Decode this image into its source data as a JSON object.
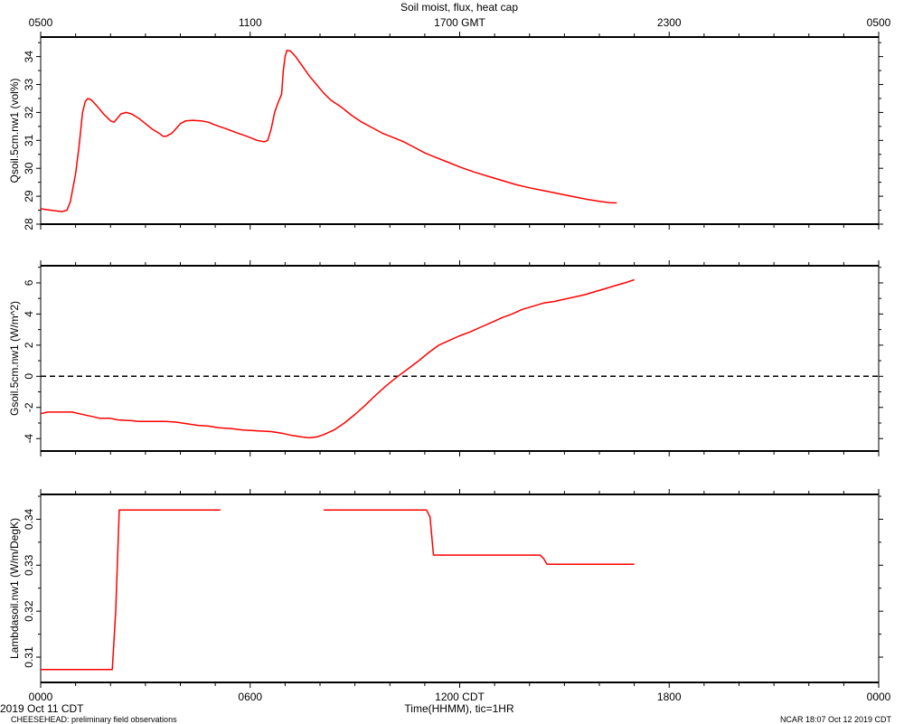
{
  "title": "Soil moist, flux, heat cap",
  "top_axis": {
    "label": "GMT",
    "ticks": [
      "0500",
      "1100",
      "1700 GMT",
      "2300",
      "0500"
    ]
  },
  "bottom_axis": {
    "label": "Time(HHMM), tic=1HR",
    "ticks": [
      "0000",
      "0600",
      "1200 CDT",
      "1800",
      "0000"
    ]
  },
  "footer": {
    "date": "2019 Oct 11 CDT",
    "project": "CHEESEHEAD: preliminary field observations",
    "stamp": "NCAR 18:07 Oct 12 2019 CDT"
  },
  "chart_data": [
    {
      "type": "line",
      "ylabel": "Qsoil.5cm.nw1 (vol%)",
      "xlabel": "Time(HHMM), tic=1HR",
      "xlim": [
        0,
        24
      ],
      "ylim": [
        28,
        34.7
      ],
      "yticks": [
        28,
        29,
        30,
        31,
        32,
        33,
        34
      ],
      "color": "#ff0000",
      "series": [
        {
          "points": [
            [
              0.0,
              28.55
            ],
            [
              0.3,
              28.5
            ],
            [
              0.6,
              28.45
            ],
            [
              0.75,
              28.5
            ],
            [
              0.85,
              28.8
            ],
            [
              1.0,
              29.8
            ],
            [
              1.1,
              30.8
            ],
            [
              1.2,
              32.0
            ],
            [
              1.28,
              32.4
            ],
            [
              1.35,
              32.5
            ],
            [
              1.45,
              32.45
            ],
            [
              1.6,
              32.25
            ],
            [
              1.8,
              31.95
            ],
            [
              2.0,
              31.7
            ],
            [
              2.1,
              31.65
            ],
            [
              2.2,
              31.8
            ],
            [
              2.3,
              31.95
            ],
            [
              2.45,
              32.0
            ],
            [
              2.6,
              31.95
            ],
            [
              2.8,
              31.8
            ],
            [
              3.0,
              31.6
            ],
            [
              3.2,
              31.4
            ],
            [
              3.4,
              31.25
            ],
            [
              3.5,
              31.15
            ],
            [
              3.6,
              31.15
            ],
            [
              3.75,
              31.25
            ],
            [
              3.9,
              31.45
            ],
            [
              4.0,
              31.6
            ],
            [
              4.15,
              31.7
            ],
            [
              4.35,
              31.72
            ],
            [
              4.6,
              31.7
            ],
            [
              4.8,
              31.65
            ],
            [
              5.0,
              31.55
            ],
            [
              5.3,
              31.42
            ],
            [
              5.6,
              31.28
            ],
            [
              5.9,
              31.15
            ],
            [
              6.2,
              31.0
            ],
            [
              6.4,
              30.95
            ],
            [
              6.5,
              31.0
            ],
            [
              6.6,
              31.4
            ],
            [
              6.7,
              32.0
            ],
            [
              6.8,
              32.35
            ],
            [
              6.9,
              32.65
            ],
            [
              6.95,
              33.5
            ],
            [
              7.0,
              34.0
            ],
            [
              7.05,
              34.22
            ],
            [
              7.15,
              34.2
            ],
            [
              7.3,
              34.0
            ],
            [
              7.5,
              33.65
            ],
            [
              7.7,
              33.3
            ],
            [
              7.9,
              33.0
            ],
            [
              8.1,
              32.7
            ],
            [
              8.3,
              32.45
            ],
            [
              8.6,
              32.2
            ],
            [
              8.9,
              31.9
            ],
            [
              9.2,
              31.65
            ],
            [
              9.5,
              31.45
            ],
            [
              9.8,
              31.25
            ],
            [
              10.1,
              31.1
            ],
            [
              10.4,
              30.95
            ],
            [
              10.7,
              30.75
            ],
            [
              11.0,
              30.55
            ],
            [
              11.3,
              30.4
            ],
            [
              11.6,
              30.25
            ],
            [
              12.0,
              30.05
            ],
            [
              12.4,
              29.87
            ],
            [
              12.8,
              29.72
            ],
            [
              13.2,
              29.57
            ],
            [
              13.6,
              29.42
            ],
            [
              14.0,
              29.3
            ],
            [
              14.4,
              29.2
            ],
            [
              14.8,
              29.1
            ],
            [
              15.2,
              29.0
            ],
            [
              15.6,
              28.9
            ],
            [
              16.0,
              28.82
            ],
            [
              16.3,
              28.77
            ],
            [
              16.5,
              28.76
            ]
          ]
        }
      ]
    },
    {
      "type": "line",
      "ylabel": "Gsoil.5cm.nw1 (W/m^2)",
      "xlabel": "Time(HHMM), tic=1HR",
      "xlim": [
        0,
        24
      ],
      "ylim": [
        -4.8,
        7.1
      ],
      "yticks": [
        -4,
        -2,
        0,
        2,
        4,
        6
      ],
      "zero_line": 0,
      "color": "#ff0000",
      "series": [
        {
          "points": [
            [
              0.0,
              -2.4
            ],
            [
              0.2,
              -2.3
            ],
            [
              0.5,
              -2.3
            ],
            [
              0.9,
              -2.3
            ],
            [
              1.1,
              -2.4
            ],
            [
              1.4,
              -2.55
            ],
            [
              1.7,
              -2.7
            ],
            [
              2.0,
              -2.7
            ],
            [
              2.2,
              -2.8
            ],
            [
              2.6,
              -2.85
            ],
            [
              2.8,
              -2.9
            ],
            [
              3.2,
              -2.9
            ],
            [
              3.6,
              -2.9
            ],
            [
              3.9,
              -2.95
            ],
            [
              4.2,
              -3.05
            ],
            [
              4.5,
              -3.15
            ],
            [
              4.8,
              -3.2
            ],
            [
              5.1,
              -3.3
            ],
            [
              5.4,
              -3.35
            ],
            [
              5.8,
              -3.45
            ],
            [
              6.2,
              -3.5
            ],
            [
              6.6,
              -3.55
            ],
            [
              6.9,
              -3.65
            ],
            [
              7.2,
              -3.8
            ],
            [
              7.5,
              -3.9
            ],
            [
              7.7,
              -3.95
            ],
            [
              7.9,
              -3.9
            ],
            [
              8.1,
              -3.75
            ],
            [
              8.4,
              -3.45
            ],
            [
              8.7,
              -3.0
            ],
            [
              9.0,
              -2.45
            ],
            [
              9.3,
              -1.85
            ],
            [
              9.6,
              -1.2
            ],
            [
              9.9,
              -0.6
            ],
            [
              10.2,
              -0.05
            ],
            [
              10.5,
              0.45
            ],
            [
              10.8,
              0.95
            ],
            [
              11.1,
              1.5
            ],
            [
              11.4,
              2.0
            ],
            [
              11.7,
              2.3
            ],
            [
              12.0,
              2.6
            ],
            [
              12.3,
              2.85
            ],
            [
              12.6,
              3.15
            ],
            [
              12.9,
              3.45
            ],
            [
              13.2,
              3.75
            ],
            [
              13.5,
              4.0
            ],
            [
              13.8,
              4.3
            ],
            [
              14.1,
              4.5
            ],
            [
              14.4,
              4.7
            ],
            [
              14.7,
              4.8
            ],
            [
              15.0,
              4.95
            ],
            [
              15.3,
              5.1
            ],
            [
              15.6,
              5.25
            ],
            [
              15.9,
              5.45
            ],
            [
              16.2,
              5.65
            ],
            [
              16.5,
              5.85
            ],
            [
              16.8,
              6.05
            ],
            [
              17.0,
              6.2
            ]
          ]
        }
      ]
    },
    {
      "type": "line",
      "ylabel": "Lambdasoil.nw1 (W/m/DegK)",
      "xlabel": "Time(HHMM), tic=1HR",
      "xlim": [
        0,
        24
      ],
      "ylim": [
        0.3045,
        0.3454
      ],
      "yticks": [
        0.31,
        0.32,
        0.33,
        0.34
      ],
      "color": "#ff0000",
      "series": [
        {
          "points": [
            [
              0.0,
              0.3073
            ],
            [
              2.05,
              0.3073
            ],
            [
              2.15,
              0.32
            ],
            [
              2.25,
              0.342
            ],
            [
              5.15,
              0.342
            ]
          ]
        },
        {
          "points": [
            [
              8.1,
              0.342
            ],
            [
              11.05,
              0.342
            ],
            [
              11.15,
              0.3405
            ],
            [
              11.25,
              0.3322
            ],
            [
              14.3,
              0.3322
            ],
            [
              14.4,
              0.3315
            ],
            [
              14.5,
              0.3302
            ],
            [
              17.0,
              0.3302
            ]
          ]
        }
      ]
    }
  ]
}
